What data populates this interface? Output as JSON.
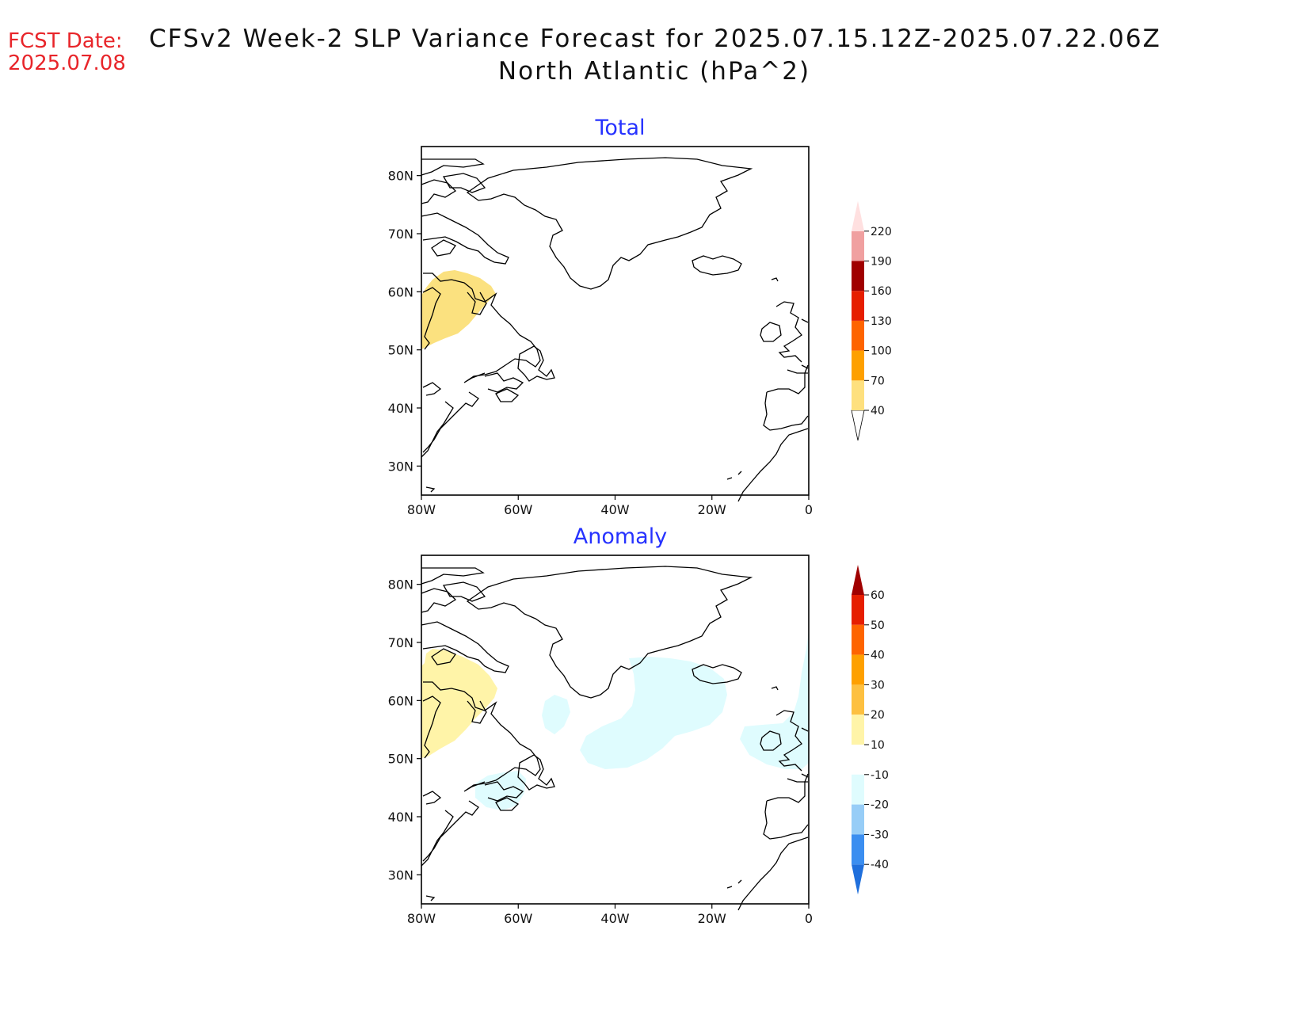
{
  "header": {
    "fcst_label": "FCST Date:",
    "fcst_date": "2025.07.08",
    "title_line1": "CFSv2 Week-2 SLP Variance Forecast for 2025.07.15.12Z-2025.07.22.06Z",
    "title_line2": "North Atlantic (hPa^2)"
  },
  "axes": {
    "lat_ticks": [
      "80N",
      "70N",
      "60N",
      "50N",
      "40N",
      "30N"
    ],
    "lon_ticks": [
      "80W",
      "60W",
      "40W",
      "20W",
      "0"
    ],
    "lat_range": [
      25,
      85
    ],
    "lon_range": [
      -80,
      0
    ]
  },
  "panels": [
    {
      "title": "Total",
      "colorbar": {
        "levels": [
          "40",
          "70",
          "100",
          "130",
          "160",
          "190",
          "220"
        ],
        "colors": [
          "#fee07e",
          "#fea000",
          "#fe6400",
          "#e61e00",
          "#a00000",
          "#f0a0a0",
          "#ffe0e0"
        ]
      },
      "features": [
        {
          "name": "Labrador / Hudson Strait",
          "value_range": "40-70",
          "color": "#fbe17f"
        }
      ]
    },
    {
      "title": "Anomaly",
      "colorbar": {
        "levels": [
          "60",
          "50",
          "40",
          "30",
          "20",
          "10",
          "-10",
          "-20",
          "-30",
          "-40"
        ],
        "colors": [
          "#a00000",
          "#e61e00",
          "#fe6400",
          "#fea000",
          "#fdc040",
          "#fff4a8",
          "#ffffff",
          "#dffcfe",
          "#97cdf7",
          "#3b8ef0",
          "#1f6fdc"
        ]
      },
      "features": [
        {
          "name": "Labrador / Baffin",
          "value_range": "10-20",
          "color": "#fff4a8"
        },
        {
          "name": "Central North Atlantic",
          "value_range": "-10 to -20",
          "color": "#dffcfe"
        },
        {
          "name": "Nova Scotia",
          "value_range": "-10 to -20",
          "color": "#dffcfe"
        },
        {
          "name": "British Isles",
          "value_range": "-10 to -20",
          "color": "#dffcfe"
        }
      ]
    }
  ]
}
